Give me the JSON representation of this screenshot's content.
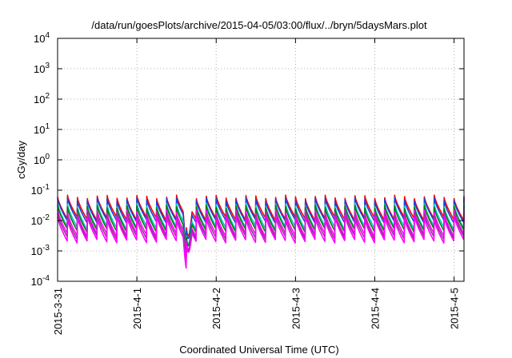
{
  "chart_data": {
    "type": "line",
    "title": "/data/run/goesPlots/archive/2015-04-05/03:00/flux/../bryn/5daysMars.plot",
    "xlabel": "Coordinated Universal Time (UTC)",
    "ylabel": "cGy/day",
    "y_scale": "log",
    "ylim": [
      0.0001,
      10000
    ],
    "xlim": [
      "2015-03-31",
      "2015-04-05 03:00"
    ],
    "grid": true,
    "y_ticks": [
      {
        "value": 0.0001,
        "base": "10",
        "exp": "-4"
      },
      {
        "value": 0.001,
        "base": "10",
        "exp": "-3"
      },
      {
        "value": 0.01,
        "base": "10",
        "exp": "-2"
      },
      {
        "value": 0.1,
        "base": "10",
        "exp": "-1"
      },
      {
        "value": 1,
        "base": "10",
        "exp": "0"
      },
      {
        "value": 10,
        "base": "10",
        "exp": "1"
      },
      {
        "value": 100,
        "base": "10",
        "exp": "2"
      },
      {
        "value": 1000,
        "base": "10",
        "exp": "3"
      },
      {
        "value": 10000,
        "base": "10",
        "exp": "4"
      }
    ],
    "x_ticks": [
      {
        "value": "2015-03-31",
        "label": "2015-3-31"
      },
      {
        "value": "2015-04-01",
        "label": "2015-4-1"
      },
      {
        "value": "2015-04-02",
        "label": "2015-4-2"
      },
      {
        "value": "2015-04-03",
        "label": "2015-4-3"
      },
      {
        "value": "2015-04-04",
        "label": "2015-4-4"
      },
      {
        "value": "2015-04-05",
        "label": "2015-4-5"
      }
    ],
    "series": [
      {
        "color": "#ff0000",
        "peak": 0.06,
        "trough": 0.011
      },
      {
        "color": "#1f3fd8",
        "peak": 0.05,
        "trough": 0.009
      },
      {
        "color": "#00c8c8",
        "peak": 0.033,
        "trough": 0.0055
      },
      {
        "color": "#008000",
        "peak": 0.028,
        "trough": 0.0045
      },
      {
        "color": "#ff00ff",
        "peak": 0.02,
        "trough": 0.0032
      },
      {
        "color": "#8b3a8b",
        "peak": 0.016,
        "trough": 0.0026
      },
      {
        "color": "#ff00ff",
        "peak": 0.013,
        "trough": 0.002
      }
    ],
    "dip_event": {
      "start": "2015-04-01 14:00",
      "end": "2015-04-01 17:30",
      "min_factor": 0.08
    }
  }
}
